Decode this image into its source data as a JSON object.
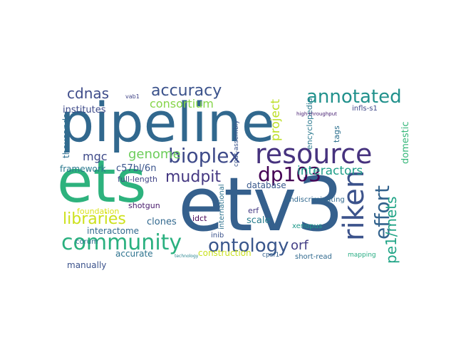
{
  "wordcloud": {
    "background": "#ffffff",
    "words": [
      {
        "text": "pipeline",
        "color": "#31688e"
      },
      {
        "text": "etv3",
        "color": "#35608d"
      },
      {
        "text": "ets",
        "color": "#2db27d"
      },
      {
        "text": "resource",
        "color": "#46327e"
      },
      {
        "text": "community",
        "color": "#2ab07f"
      },
      {
        "text": "annotated",
        "color": "#21918c"
      },
      {
        "text": "ontology",
        "color": "#39568c"
      },
      {
        "text": "riken",
        "color": "#3b528b"
      },
      {
        "text": "dp103",
        "color": "#440154"
      },
      {
        "text": "bioplex",
        "color": "#3e4a89"
      },
      {
        "text": "accuracy",
        "color": "#3b528b"
      },
      {
        "text": "libraries",
        "color": "#cde11d"
      },
      {
        "text": "effort",
        "color": "#33638d"
      },
      {
        "text": "mudpit",
        "color": "#453882"
      },
      {
        "text": "cdnas",
        "color": "#3e4c8a"
      },
      {
        "text": "pe1/mets",
        "color": "#20a486"
      },
      {
        "text": "interactors",
        "color": "#1f9e89"
      },
      {
        "text": "project",
        "color": "#bddf26"
      },
      {
        "text": "orf",
        "color": "#433e85"
      },
      {
        "text": "genome",
        "color": "#6ccd5a"
      },
      {
        "text": "consortium",
        "color": "#86d549"
      },
      {
        "text": "mgc",
        "color": "#3e4a89"
      },
      {
        "text": "c57bl/6n",
        "color": "#3a548c"
      },
      {
        "text": "framework",
        "color": "#2a788e"
      },
      {
        "text": "clones",
        "color": "#31688e"
      },
      {
        "text": "scale",
        "color": "#287d8e"
      },
      {
        "text": "database",
        "color": "#38588c"
      },
      {
        "text": "accurate",
        "color": "#2c728e"
      },
      {
        "text": "manually",
        "color": "#3b528b"
      },
      {
        "text": "construction",
        "color": "#cae11f"
      },
      {
        "text": "interactome",
        "color": "#31688e"
      },
      {
        "text": "institutes",
        "color": "#3e4a89"
      },
      {
        "text": "thousands",
        "color": "#2e6e8e"
      },
      {
        "text": "domestic",
        "color": "#35b779"
      },
      {
        "text": "full-length",
        "color": "#414487"
      },
      {
        "text": "foundation",
        "color": "#dae319"
      },
      {
        "text": "shotgun",
        "color": "#481a6c"
      },
      {
        "text": "corum",
        "color": "#2c718e"
      },
      {
        "text": "erf",
        "color": "#443983"
      },
      {
        "text": "tags",
        "color": "#2d708e"
      },
      {
        "text": "encyclopedia",
        "color": "#2a788e"
      },
      {
        "text": "idct",
        "color": "#440154"
      },
      {
        "text": "inib",
        "color": "#3b528b"
      },
      {
        "text": "xenopus",
        "color": "#1f9a8a"
      },
      {
        "text": "undiscriminating",
        "color": "#31688e"
      },
      {
        "text": "international",
        "color": "#2c728e"
      },
      {
        "text": "cpsf1",
        "color": "#34618d"
      },
      {
        "text": "short-read",
        "color": "#30698e"
      },
      {
        "text": "mapping",
        "color": "#25ac82"
      },
      {
        "text": "infls-s1",
        "color": "#3f4889"
      },
      {
        "text": "coat-assembly",
        "color": "#3a548c"
      },
      {
        "text": "high-throughput",
        "color": "#482173"
      },
      {
        "text": "technology",
        "color": "#25848e"
      },
      {
        "text": "vab1",
        "color": "#414487"
      }
    ]
  }
}
